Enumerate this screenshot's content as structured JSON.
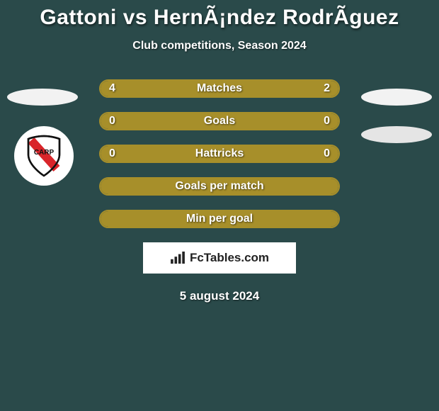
{
  "title": "Gattoni vs HernÃ¡ndez RodrÃ­guez",
  "subtitle": "Club competitions, Season 2024",
  "date": "5 august 2024",
  "branding_text": "FcTables.com",
  "colors": {
    "background": "#2a4a4a",
    "bar_border": "#a78f2a",
    "bar_fill": "#a78f2a",
    "text": "#ffffff",
    "branding_bg": "#ffffff",
    "branding_text": "#222222"
  },
  "bars": [
    {
      "label": "Matches",
      "left_value": "4",
      "right_value": "2",
      "left_fill_pct": 66.7,
      "right_fill_pct": 33.3,
      "has_values": true
    },
    {
      "label": "Goals",
      "left_value": "0",
      "right_value": "0",
      "left_fill_pct": 100,
      "right_fill_pct": 0,
      "has_values": true,
      "full_fill": true
    },
    {
      "label": "Hattricks",
      "left_value": "0",
      "right_value": "0",
      "left_fill_pct": 100,
      "right_fill_pct": 0,
      "has_values": true,
      "full_fill": true
    },
    {
      "label": "Goals per match",
      "has_values": false,
      "full_fill": true
    },
    {
      "label": "Min per goal",
      "has_values": false,
      "full_fill": true
    }
  ]
}
